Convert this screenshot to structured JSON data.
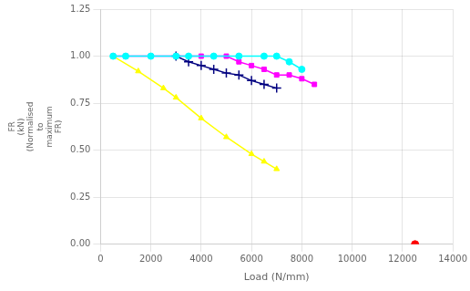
{
  "chart_data": {
    "type": "line",
    "xlabel": "Load (N/mm)",
    "ylabel": "FR\n(kN)\n(Normalised\nto\nmaximum\nFR)",
    "xlim": [
      0,
      14000
    ],
    "ylim": [
      0.0,
      1.25
    ],
    "xticks": [
      0,
      2000,
      4000,
      6000,
      8000,
      10000,
      12000,
      14000
    ],
    "yticks": [
      {
        "value": 0.0,
        "label": "0.00"
      },
      {
        "value": 0.25,
        "label": "0.25"
      },
      {
        "value": 0.5,
        "label": "0.50"
      },
      {
        "value": 0.75,
        "label": "0.75"
      },
      {
        "value": 1.0,
        "label": "1.00"
      },
      {
        "value": 1.25,
        "label": "1.25"
      }
    ],
    "grid": true,
    "series": [
      {
        "color": "#00ffff",
        "marker": "circle",
        "x": [
          500,
          1000,
          2000,
          3000,
          3500,
          4500,
          5500,
          6500,
          7000,
          7500,
          8000
        ],
        "values": [
          1.0,
          1.0,
          1.0,
          1.0,
          1.0,
          1.0,
          1.0,
          1.0,
          1.0,
          0.97,
          0.93
        ]
      },
      {
        "color": "#ff00ff",
        "marker": "square",
        "x": [
          500,
          1000,
          2000,
          3000,
          4000,
          5000,
          5500,
          6000,
          6500,
          7000,
          7500,
          8000,
          8500
        ],
        "values": [
          1.0,
          1.0,
          1.0,
          1.0,
          1.0,
          1.0,
          0.97,
          0.95,
          0.93,
          0.9,
          0.9,
          0.88,
          0.85
        ]
      },
      {
        "color": "#000080",
        "marker": "cross",
        "x": [
          3000,
          3500,
          4000,
          4500,
          5000,
          5500,
          6000,
          6500,
          7000
        ],
        "values": [
          1.0,
          0.97,
          0.95,
          0.93,
          0.91,
          0.9,
          0.87,
          0.85,
          0.83
        ]
      },
      {
        "color": "#ffff00",
        "marker": "triangle",
        "x": [
          500,
          1500,
          2500,
          3000,
          4000,
          5000,
          6000,
          6500,
          7000
        ],
        "values": [
          1.0,
          0.92,
          0.83,
          0.78,
          0.67,
          0.57,
          0.48,
          0.44,
          0.4
        ]
      },
      {
        "type": "scatter",
        "color": "#ff0000",
        "marker": "circle",
        "x": [
          12500
        ],
        "values": [
          0.0
        ]
      }
    ]
  }
}
